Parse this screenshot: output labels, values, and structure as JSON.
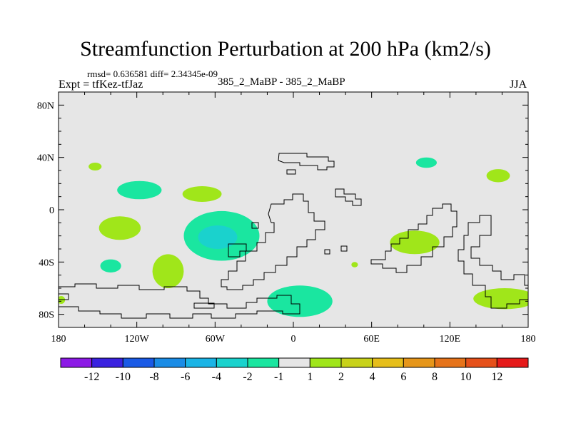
{
  "title": "Streamfunction Perturbation at 200 hPa (km2/s)",
  "stats_line": "rmsd= 0.636581 diff= 2.34345e-09",
  "left_label": "Expt = tfKez-tfJaz",
  "center_label": "385_2_MaBP - 385_2_MaBP",
  "right_label": "JJA",
  "chart_data": {
    "type": "heatmap",
    "projection": "cylindrical equidistant",
    "xlim": [
      -180,
      180
    ],
    "ylim": [
      -90,
      90
    ],
    "x_ticks": [
      {
        "value": -180,
        "label": "180"
      },
      {
        "value": -120,
        "label": "120W"
      },
      {
        "value": -60,
        "label": "60W"
      },
      {
        "value": 0,
        "label": "0"
      },
      {
        "value": 60,
        "label": "60E"
      },
      {
        "value": 120,
        "label": "120E"
      },
      {
        "value": 180,
        "label": "180"
      }
    ],
    "y_ticks": [
      {
        "value": 80,
        "label": "80N"
      },
      {
        "value": 40,
        "label": "40N"
      },
      {
        "value": 0,
        "label": "0"
      },
      {
        "value": -40,
        "label": "40S"
      },
      {
        "value": -80,
        "label": "80S"
      }
    ],
    "background_color": "#e6e6e6",
    "colorbar": {
      "colors": [
        "#8c1ae6",
        "#3a22e0",
        "#1a5ae6",
        "#1a8ce6",
        "#1ab4e6",
        "#1ad2cd",
        "#1ae6a0",
        "#e6e6e6",
        "#a0e61a",
        "#c8d21a",
        "#e6be1a",
        "#e6961a",
        "#e6731a",
        "#e6501a",
        "#e61a1a"
      ],
      "labels": [
        "-12",
        "-10",
        "-8",
        "-6",
        "-4",
        "-2",
        "-1",
        "1",
        "2",
        "4",
        "6",
        "8",
        "10",
        "12"
      ]
    },
    "anomalies": [
      {
        "lon": -152,
        "lat": 33,
        "rlon": 5,
        "rlat": 3,
        "level": "2",
        "color": "#a0e61a"
      },
      {
        "lon": -118,
        "lat": 15,
        "rlon": 17,
        "rlat": 7,
        "level": "-1",
        "color": "#1ae6a0"
      },
      {
        "lon": -133,
        "lat": -14,
        "rlon": 16,
        "rlat": 9,
        "level": "2",
        "color": "#a0e61a"
      },
      {
        "lon": -70,
        "lat": 12,
        "rlon": 15,
        "rlat": 6,
        "level": "2",
        "color": "#a0e61a"
      },
      {
        "lon": -55,
        "lat": -20,
        "rlon": 29,
        "rlat": 19,
        "level": "-1",
        "color": "#1ae6a0"
      },
      {
        "lon": -58,
        "lat": -21,
        "rlon": 15,
        "rlat": 9,
        "level": "-2",
        "color": "#1ad2cd"
      },
      {
        "lon": -140,
        "lat": -43,
        "rlon": 8,
        "rlat": 5,
        "level": "-1",
        "color": "#1ae6a0"
      },
      {
        "lon": -96,
        "lat": -47,
        "rlon": 12,
        "rlat": 13,
        "level": "2",
        "color": "#a0e61a"
      },
      {
        "lon": 5,
        "lat": -70,
        "rlon": 25,
        "rlat": 12,
        "level": "-1",
        "color": "#1ae6a0"
      },
      {
        "lon": 47,
        "lat": -42,
        "rlon": 2.5,
        "rlat": 2,
        "level": "2",
        "color": "#a0e61a"
      },
      {
        "lon": 102,
        "lat": 36,
        "rlon": 8,
        "rlat": 4,
        "level": "-1",
        "color": "#1ae6a0"
      },
      {
        "lon": 157,
        "lat": 26,
        "rlon": 9,
        "rlat": 5,
        "level": "2",
        "color": "#a0e61a"
      },
      {
        "lon": 93,
        "lat": -25,
        "rlon": 19,
        "rlat": 9,
        "level": "2",
        "color": "#a0e61a"
      },
      {
        "lon": 162,
        "lat": -68,
        "rlon": 24,
        "rlat": 8,
        "level": "2",
        "color": "#a0e61a"
      },
      {
        "lon": -178,
        "lat": -69,
        "rlon": 3,
        "rlat": 3,
        "level": "2",
        "color": "#a0e61a"
      }
    ]
  }
}
